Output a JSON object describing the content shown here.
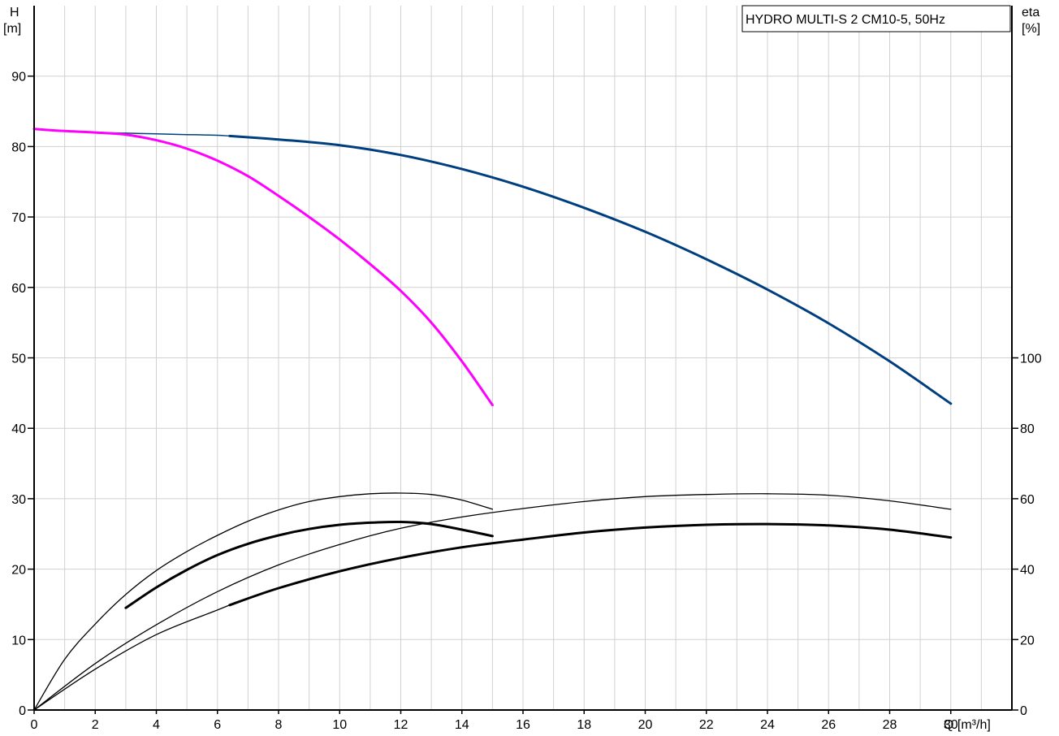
{
  "chart_data": {
    "type": "line",
    "title": "HYDRO MULTI-S 2 CM10-5, 50Hz",
    "x_axis": {
      "label": "Q [m³/h]",
      "range": [
        0,
        32
      ],
      "ticks": [
        0,
        2,
        4,
        6,
        8,
        10,
        12,
        14,
        16,
        18,
        20,
        22,
        24,
        26,
        28,
        30
      ]
    },
    "y_axis_left": {
      "label_top": "H",
      "label_bottom": "[m]",
      "range": [
        0,
        100
      ],
      "ticks": [
        0,
        10,
        20,
        30,
        40,
        50,
        60,
        70,
        80,
        90
      ]
    },
    "y_axis_right": {
      "label_top": "eta",
      "label_bottom": "[%]",
      "range": [
        0,
        200
      ],
      "ticks": [
        0,
        20,
        40,
        60,
        80,
        100
      ]
    },
    "grid": true,
    "legend_position": "top-right",
    "series": [
      {
        "axis": "left",
        "color": "#003f7f",
        "width": 3,
        "x": [
          6.4,
          8,
          10,
          12,
          14,
          16,
          18,
          20,
          22,
          24,
          26,
          28,
          30
        ],
        "y": [
          81.5,
          81.0,
          80.2,
          78.8,
          76.8,
          74.3,
          71.3,
          67.9,
          64.0,
          59.7,
          54.9,
          49.5,
          43.5
        ]
      },
      {
        "axis": "left",
        "color": "#003f7f",
        "width": 1.5,
        "x": [
          0,
          0.5,
          1,
          2,
          3,
          4,
          5,
          6,
          6.4
        ],
        "y": [
          82.5,
          82.3,
          82.2,
          82.0,
          81.9,
          81.8,
          81.7,
          81.6,
          81.5
        ]
      },
      {
        "axis": "left",
        "color": "#ff00ff",
        "width": 3,
        "x": [
          0,
          1,
          2,
          3,
          4,
          5,
          6,
          7,
          8,
          9,
          10,
          11,
          12,
          13,
          14,
          15
        ],
        "y": [
          82.5,
          82.2,
          82.0,
          81.7,
          80.9,
          79.7,
          78.0,
          75.8,
          73.0,
          70.0,
          66.8,
          63.3,
          59.5,
          55.0,
          49.5,
          43.3
        ]
      },
      {
        "axis": "right",
        "color": "#000000",
        "width": 1.3,
        "x": [
          0,
          1,
          2,
          3,
          4,
          5,
          6,
          7,
          8,
          9,
          10,
          11,
          12,
          13,
          14,
          15
        ],
        "y": [
          0,
          14.4,
          24.4,
          32.8,
          39.6,
          45.0,
          49.6,
          53.6,
          56.8,
          59.2,
          60.6,
          61.4,
          61.6,
          61.2,
          59.6,
          57.0
        ]
      },
      {
        "axis": "right",
        "color": "#000000",
        "width": 3,
        "x": [
          3,
          4,
          5,
          6,
          7,
          8,
          9,
          10,
          11,
          12,
          13,
          14,
          15
        ],
        "y": [
          29.0,
          34.8,
          39.8,
          44.0,
          47.2,
          49.6,
          51.4,
          52.6,
          53.2,
          53.4,
          52.8,
          51.2,
          49.4
        ]
      },
      {
        "axis": "right",
        "color": "#000000",
        "width": 1.3,
        "x": [
          0,
          2,
          4,
          6,
          8,
          10,
          12,
          14,
          16,
          18,
          20,
          22,
          24,
          26,
          28,
          30
        ],
        "y": [
          0,
          13.2,
          24.2,
          33.6,
          41.2,
          47.0,
          51.6,
          54.8,
          57.2,
          59.2,
          60.6,
          61.2,
          61.4,
          61.0,
          59.4,
          57.0
        ]
      },
      {
        "axis": "right",
        "color": "#000000",
        "width": 1.3,
        "x": [
          0,
          2,
          4,
          6,
          6.4
        ],
        "y": [
          0,
          11.6,
          21.4,
          28.4,
          29.8
        ]
      },
      {
        "axis": "right",
        "color": "#000000",
        "width": 3,
        "x": [
          6.4,
          8,
          10,
          12,
          14,
          16,
          18,
          20,
          22,
          24,
          26,
          28,
          30
        ],
        "y": [
          29.8,
          34.6,
          39.4,
          43.2,
          46.2,
          48.4,
          50.4,
          51.8,
          52.6,
          52.8,
          52.4,
          51.2,
          49.0
        ]
      }
    ]
  }
}
